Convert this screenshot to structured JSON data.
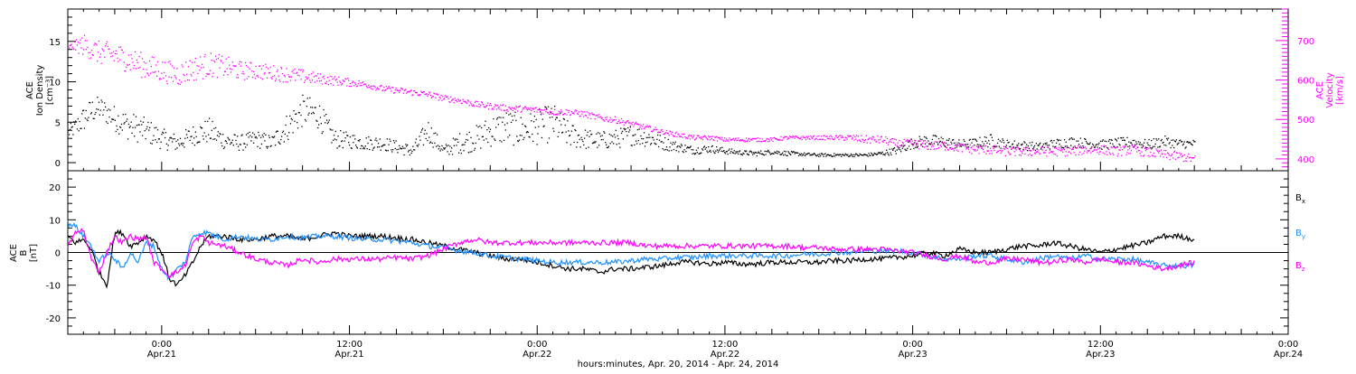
{
  "figure": {
    "xlabel": "hours:minutes, Apr. 20, 2014 - Apr. 24, 2014",
    "x_ticks": [
      {
        "hour": 30,
        "time": "0:00",
        "date": "Apr.21"
      },
      {
        "hour": 42,
        "time": "12:00",
        "date": "Apr.21"
      },
      {
        "hour": 54,
        "time": "0:00",
        "date": "Apr.22"
      },
      {
        "hour": 66,
        "time": "12:00",
        "date": "Apr.22"
      },
      {
        "hour": 78,
        "time": "0:00",
        "date": "Apr.23"
      },
      {
        "hour": 90,
        "time": "12:00",
        "date": "Apr.23"
      },
      {
        "hour": 102,
        "time": "0:00",
        "date": "Apr.24"
      }
    ]
  },
  "chart_data": [
    {
      "type": "scatter",
      "panel": "ion-density-velocity",
      "ylabel_lines": [
        "ACE",
        "Ion Density",
        "[cm⁻³]"
      ],
      "y2label_lines": [
        "ACE",
        "Velocity",
        "[km/s]"
      ],
      "xlim": [
        24,
        102
      ],
      "ylim": [
        -1,
        19
      ],
      "y2lim": [
        370,
        780
      ],
      "y_ticks": [
        "0",
        "5",
        "10",
        "15"
      ],
      "y_tick_values": [
        0,
        5,
        10,
        15
      ],
      "y2_ticks": [
        "400",
        "500",
        "600",
        "700"
      ],
      "y2_tick_values": [
        400,
        500,
        600,
        700
      ],
      "series": [
        {
          "axis": "left",
          "color": "#000000",
          "x": [
            24,
            24.5,
            25,
            25.5,
            26,
            26.5,
            27,
            28,
            29,
            30,
            31,
            32,
            33,
            34,
            35,
            36,
            37,
            38,
            39,
            40,
            41,
            42,
            43,
            44,
            45,
            46,
            47,
            48,
            49,
            50,
            51,
            52,
            53,
            54,
            55,
            56,
            57,
            58,
            59,
            60,
            61,
            62,
            63,
            64,
            65,
            66,
            67,
            68,
            69,
            70,
            71,
            72,
            73,
            74,
            75,
            76,
            77,
            78,
            79,
            80,
            81,
            82,
            83,
            84,
            85,
            86,
            87,
            88,
            89,
            90,
            91,
            92,
            93,
            94,
            95,
            96
          ],
          "y": [
            3.8,
            4.5,
            5.5,
            6.5,
            6.8,
            6.2,
            5.5,
            4.5,
            4,
            3,
            2.5,
            3.5,
            4,
            2.8,
            2.5,
            3,
            2.5,
            4.5,
            6.5,
            6,
            3,
            2.8,
            2.5,
            2.5,
            2,
            1.5,
            4,
            1.5,
            2.5,
            3,
            4,
            4.5,
            4,
            4.5,
            5,
            3.5,
            3,
            2.8,
            3,
            3.5,
            3.2,
            2.5,
            2,
            1.6,
            1.8,
            1.5,
            1.3,
            1.2,
            1.4,
            1.2,
            1.1,
            1,
            1,
            1,
            1,
            1.2,
            1.6,
            2.5,
            2.8,
            2.6,
            2.3,
            2.5,
            2.8,
            2.3,
            2.2,
            2,
            2.4,
            2.6,
            2.5,
            2.3,
            2.5,
            2.6,
            2.3,
            2.7,
            2.4,
            2.4
          ],
          "spread": [
            0.8,
            1.2,
            1.6,
            1.6,
            1.5,
            1.5,
            1.6,
            1.8,
            1.6,
            1.3,
            1.1,
            1.3,
            1.6,
            1.1,
            1.0,
            1.1,
            1.0,
            1.8,
            2.0,
            1.8,
            1.2,
            1.0,
            0.9,
            0.9,
            0.8,
            0.8,
            1.5,
            0.7,
            1.3,
            1.6,
            2.0,
            2.2,
            2.0,
            2.2,
            2.4,
            1.6,
            1.3,
            1.1,
            1.2,
            1.3,
            1.2,
            0.9,
            0.6,
            0.5,
            0.5,
            0.4,
            0.3,
            0.3,
            0.3,
            0.3,
            0.2,
            0.2,
            0.2,
            0.2,
            0.2,
            0.3,
            0.5,
            0.7,
            0.8,
            0.7,
            0.6,
            0.6,
            0.8,
            0.6,
            0.6,
            0.5,
            0.6,
            0.7,
            0.6,
            0.6,
            0.6,
            0.7,
            0.6,
            0.7,
            0.6,
            0.5
          ]
        },
        {
          "axis": "right",
          "color": "#ff00ff",
          "x": [
            24,
            25,
            26,
            27,
            28,
            29,
            30,
            31,
            32,
            33,
            34,
            35,
            36,
            37,
            38,
            39,
            40,
            41,
            42,
            43,
            44,
            45,
            46,
            47,
            48,
            49,
            50,
            51,
            52,
            53,
            54,
            55,
            56,
            57,
            58,
            59,
            60,
            61,
            62,
            63,
            64,
            65,
            66,
            67,
            68,
            69,
            70,
            71,
            72,
            73,
            74,
            75,
            76,
            77,
            78,
            79,
            80,
            81,
            82,
            83,
            84,
            85,
            86,
            87,
            88,
            89,
            90,
            91,
            92,
            93,
            94,
            95,
            96
          ],
          "y": [
            685,
            690,
            670,
            665,
            650,
            635,
            625,
            615,
            630,
            640,
            635,
            625,
            625,
            620,
            615,
            610,
            605,
            600,
            595,
            590,
            580,
            575,
            570,
            565,
            555,
            550,
            540,
            535,
            530,
            528,
            525,
            520,
            520,
            515,
            505,
            500,
            490,
            480,
            470,
            462,
            455,
            455,
            450,
            450,
            450,
            450,
            455,
            455,
            455,
            455,
            455,
            450,
            450,
            440,
            440,
            435,
            435,
            430,
            425,
            425,
            420,
            420,
            420,
            420,
            420,
            425,
            425,
            420,
            425,
            418,
            412,
            408,
            400
          ],
          "spread": [
            4,
            28,
            30,
            32,
            32,
            32,
            30,
            30,
            32,
            32,
            28,
            24,
            22,
            20,
            20,
            18,
            14,
            12,
            10,
            8,
            8,
            8,
            8,
            8,
            8,
            8,
            8,
            8,
            8,
            8,
            8,
            8,
            8,
            8,
            8,
            8,
            7,
            7,
            6,
            6,
            6,
            6,
            5,
            5,
            5,
            5,
            5,
            5,
            5,
            6,
            8,
            10,
            10,
            10,
            12,
            12,
            12,
            12,
            12,
            12,
            12,
            12,
            12,
            12,
            12,
            12,
            12,
            12,
            12,
            12,
            12,
            12,
            10
          ]
        }
      ]
    },
    {
      "type": "line",
      "panel": "magnetic-field",
      "ylabel_lines": [
        "ACE",
        "B",
        "[nT]"
      ],
      "xlim": [
        24,
        102
      ],
      "ylim": [
        -25,
        25
      ],
      "y_ticks": [
        "-20",
        "-10",
        "0",
        "10",
        "20"
      ],
      "y_tick_values": [
        -20,
        -10,
        0,
        10,
        20
      ],
      "zero_line": true,
      "legend_placement": "right",
      "series": [
        {
          "name": "Bx",
          "label_main": "B",
          "label_sub": "x",
          "color": "#000000",
          "x": [
            24,
            24.5,
            25,
            25.5,
            26,
            26.5,
            27,
            27.5,
            28,
            28.5,
            29,
            29.5,
            30,
            30.5,
            31,
            31.5,
            32,
            32.5,
            33,
            34,
            35,
            36,
            37,
            38,
            39,
            40,
            41,
            42,
            43,
            44,
            45,
            46,
            47,
            48,
            49,
            50,
            51,
            52,
            53,
            54,
            55,
            56,
            57,
            58,
            59,
            60,
            61,
            62,
            63,
            64,
            65,
            66,
            67,
            68,
            69,
            70,
            71,
            72,
            73,
            74,
            75,
            76,
            77,
            78,
            79,
            80,
            81,
            82,
            83,
            84,
            85,
            86,
            87,
            88,
            89,
            90,
            91,
            92,
            93,
            94,
            95,
            96
          ],
          "y": [
            5,
            3,
            4,
            1,
            -6,
            -10,
            6,
            6,
            2,
            3,
            5,
            4,
            0,
            -8,
            -10,
            -7,
            -3,
            2,
            5,
            5,
            4,
            4,
            5,
            5,
            4,
            5,
            6,
            5,
            5,
            5,
            4.5,
            4,
            3,
            2,
            1,
            0,
            -1,
            -2,
            -2,
            -3,
            -4,
            -5,
            -5,
            -6,
            -5,
            -5,
            -4.5,
            -4,
            -3,
            -3,
            -3.5,
            -3,
            -3.5,
            -3.5,
            -3,
            -3,
            -3,
            -3,
            -2.5,
            -2.5,
            -2,
            -2,
            -1.5,
            -1,
            0,
            -1,
            1,
            0,
            0,
            1,
            2,
            2,
            3,
            2,
            1,
            0,
            1,
            2,
            3,
            5,
            5,
            4
          ]
        },
        {
          "name": "By",
          "label_main": "B",
          "label_sub": "y",
          "color": "#1e90ff",
          "x": [
            24,
            24.5,
            25,
            25.5,
            26,
            26.5,
            27,
            27.5,
            28,
            28.5,
            29,
            29.5,
            30,
            30.5,
            31,
            31.5,
            32,
            32.5,
            33,
            34,
            35,
            36,
            37,
            38,
            39,
            40,
            41,
            42,
            43,
            44,
            45,
            46,
            47,
            48,
            49,
            50,
            51,
            52,
            53,
            54,
            55,
            56,
            57,
            58,
            59,
            60,
            61,
            62,
            63,
            64,
            65,
            66,
            67,
            68,
            69,
            70,
            71,
            72,
            73,
            74,
            75,
            76,
            77,
            78,
            79,
            80,
            81,
            82,
            83,
            84,
            85,
            86,
            87,
            88,
            89,
            90,
            91,
            92,
            93,
            94,
            95,
            96
          ],
          "y": [
            9,
            8,
            5,
            2,
            -3,
            0,
            -2,
            -5,
            0,
            -3,
            3,
            2,
            -5,
            -8,
            -5,
            -3,
            5,
            6,
            6,
            4,
            5,
            4,
            4,
            5,
            4.5,
            5,
            5,
            4.5,
            4,
            4,
            3.5,
            3,
            2,
            1.5,
            0.5,
            0,
            -1,
            -1.5,
            -2,
            -2.5,
            -3,
            -3,
            -3,
            -3,
            -3,
            -2.5,
            -2,
            -2,
            -1.5,
            -1.5,
            -1,
            -1,
            -1,
            -1,
            -1,
            -1,
            -0.5,
            -0.5,
            0,
            0,
            0.5,
            0.5,
            0.5,
            0,
            -1,
            -2,
            -2,
            -1,
            -1,
            -2,
            -3,
            -2,
            -1,
            -2,
            -1,
            -2,
            -2,
            -2,
            -3,
            -4,
            -4,
            -4
          ]
        },
        {
          "name": "Bz",
          "label_main": "B",
          "label_sub": "z",
          "color": "#ff00ff",
          "x": [
            24,
            24.5,
            25,
            25.5,
            26,
            26.5,
            27,
            27.5,
            28,
            28.5,
            29,
            29.5,
            30,
            30.5,
            31,
            31.5,
            32,
            32.5,
            33,
            34,
            35,
            36,
            37,
            38,
            39,
            40,
            41,
            42,
            43,
            44,
            45,
            46,
            47,
            48,
            49,
            50,
            51,
            52,
            53,
            54,
            55,
            56,
            57,
            58,
            59,
            60,
            61,
            62,
            63,
            64,
            65,
            66,
            67,
            68,
            69,
            70,
            71,
            72,
            73,
            74,
            75,
            76,
            77,
            78,
            79,
            80,
            81,
            82,
            83,
            84,
            85,
            86,
            87,
            88,
            89,
            90,
            91,
            92,
            93,
            94,
            95,
            96
          ],
          "y": [
            2,
            6,
            7,
            -2,
            -6,
            0,
            5,
            3,
            5,
            4,
            5,
            -3,
            -5,
            -7,
            -6,
            -4,
            3,
            5,
            3,
            2,
            0,
            -2,
            -3,
            -4,
            -2,
            -3,
            -2,
            -2,
            -2,
            -2,
            -1.5,
            -2,
            -1,
            1,
            3,
            4,
            3,
            3,
            3,
            3,
            3,
            3,
            3,
            3,
            3,
            3,
            2,
            2,
            2,
            2,
            2,
            2,
            2,
            2,
            2,
            2,
            1.5,
            1.5,
            1,
            1,
            1,
            1,
            0.5,
            0,
            -1,
            -2,
            -1,
            -3,
            -3,
            -2,
            -2,
            -3,
            -3,
            -2,
            -3,
            -2,
            -3,
            -3,
            -4,
            -5,
            -4,
            -3
          ]
        }
      ]
    }
  ]
}
